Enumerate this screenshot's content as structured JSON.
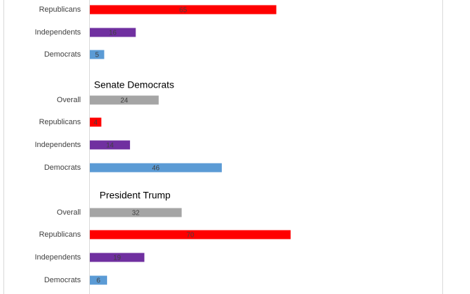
{
  "chart_data": {
    "type": "bar",
    "orientation": "horizontal",
    "panels": [
      {
        "title": "",
        "categories": [
          "Republicans",
          "Independents",
          "Democrats"
        ],
        "values": [
          65,
          16,
          5
        ]
      },
      {
        "title": "Senate Democrats",
        "categories": [
          "Overall",
          "Republicans",
          "Independents",
          "Democrats"
        ],
        "values": [
          24,
          4,
          14,
          46
        ]
      },
      {
        "title": "President Trump",
        "categories": [
          "Overall",
          "Republicans",
          "Independents",
          "Democrats"
        ],
        "values": [
          32,
          70,
          19,
          6
        ]
      }
    ],
    "colors": {
      "Overall": "#A5A5A5",
      "Republicans": "#FF0000",
      "Independents": "#7030A0",
      "Democrats": "#5B9BD5"
    },
    "xlim": [
      0,
      100
    ],
    "grid": false,
    "legend": "none"
  }
}
